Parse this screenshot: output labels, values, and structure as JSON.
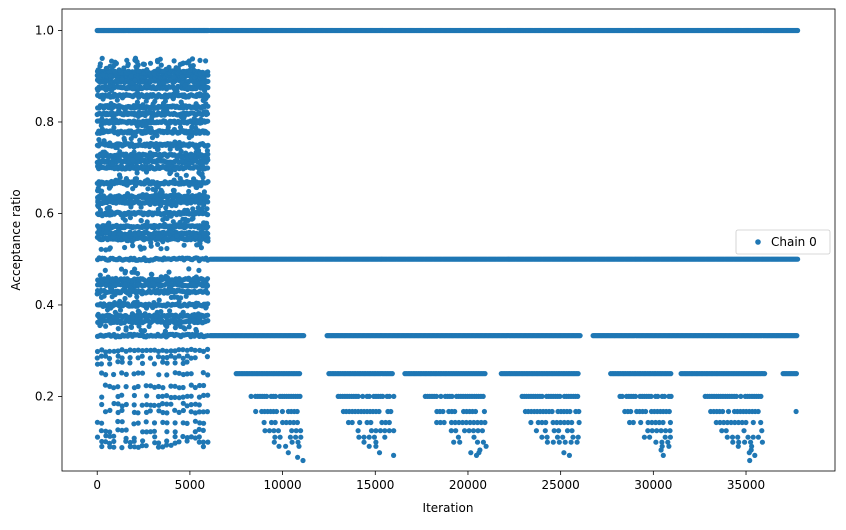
{
  "colors": {
    "series": "#1f77b4",
    "axis": "#000000",
    "legend_border": "#cccccc",
    "background": "#ffffff"
  },
  "chart_data": {
    "type": "scatter",
    "title": "",
    "xlabel": "Iteration",
    "ylabel": "Acceptance ratio",
    "xlim": [
      -1900,
      39800
    ],
    "ylim": [
      0.037,
      1.047
    ],
    "xticks": [
      0,
      5000,
      10000,
      15000,
      20000,
      25000,
      30000,
      35000
    ],
    "yticks": [
      0.2,
      0.4,
      0.6,
      0.8,
      1.0
    ],
    "xtick_labels": [
      "0",
      "5000",
      "10000",
      "15000",
      "20000",
      "25000",
      "30000",
      "35000"
    ],
    "ytick_labels": [
      "0.2",
      "0.4",
      "0.6",
      "0.8",
      "1.0"
    ],
    "grid": false,
    "legend_position": "center-right",
    "series": [
      {
        "name": "Chain 0",
        "marker": "circle",
        "description_of_structure": "dense horizontal bands of points",
        "bands": [
          {
            "y": 1.0,
            "x_range": [
              0,
              37800
            ],
            "dense_from": 6100
          },
          {
            "y": 0.5,
            "x_range": [
              0,
              37800
            ],
            "dense_from": 6100
          },
          {
            "y": 0.333,
            "x_range": [
              0,
              37800
            ]
          },
          {
            "y": 0.25,
            "x_range": [
              0,
              37800
            ]
          },
          {
            "y": 0.2,
            "x_range": [
              0,
              36000
            ]
          },
          {
            "y": 0.167,
            "x_range": [
              0,
              37800
            ]
          },
          {
            "y": 0.143,
            "x_range": [
              9000,
              36000
            ]
          },
          {
            "y": 0.125,
            "x_range": [
              9500,
              36000
            ]
          },
          {
            "y": 0.111,
            "x_range": [
              10000,
              36000
            ]
          },
          {
            "y": 0.1,
            "x_range": [
              10000,
              36000
            ]
          }
        ],
        "early_phase": {
          "x_range": [
            0,
            6100
          ],
          "y_min": 0.06,
          "y_max": 0.94
        }
      }
    ]
  },
  "legend": {
    "entries": [
      {
        "label": "Chain 0"
      }
    ]
  }
}
